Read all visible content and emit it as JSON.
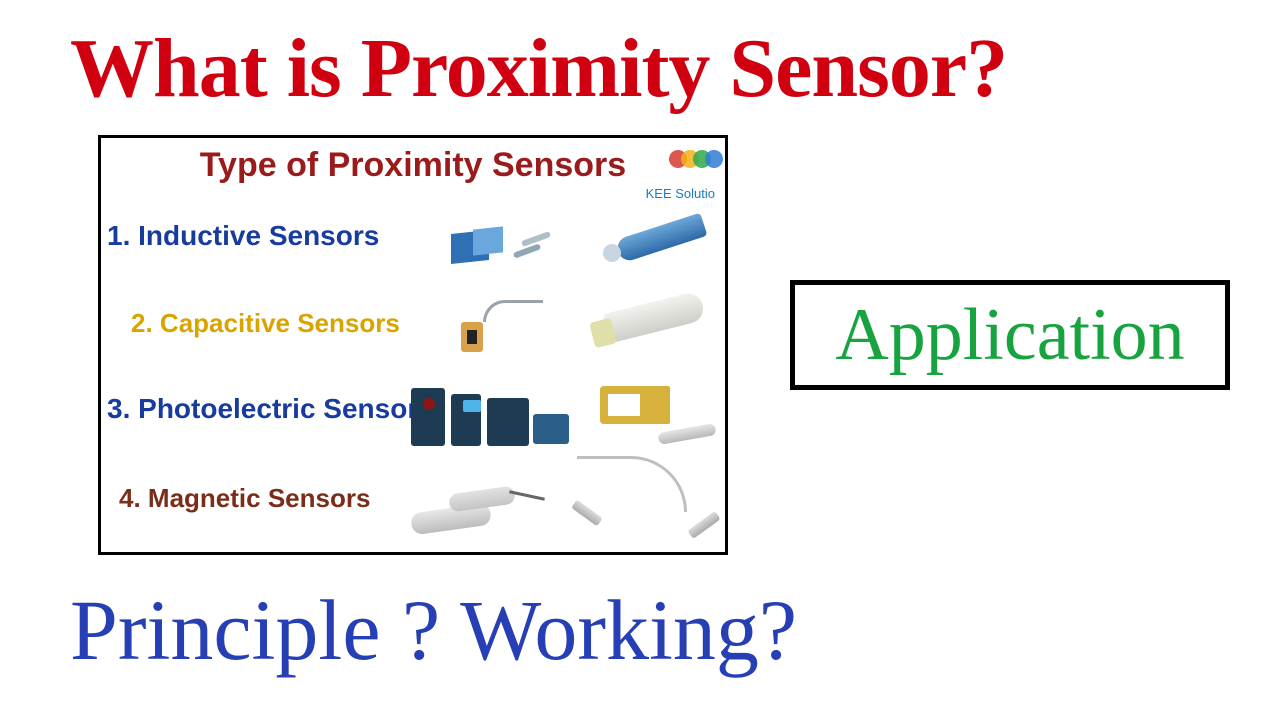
{
  "colors": {
    "title_red": "#d00010",
    "panel_title": "#9a1b1b",
    "item_blue": "#173b9e",
    "item_yellow": "#d9a400",
    "item_brown": "#7a2e1a",
    "application_green": "#17a33f",
    "bottom_blue": "#273fb5",
    "brand_blue": "#1280c4",
    "dot1": "#d63a2f",
    "dot2": "#f2b21a",
    "dot3": "#2fa84a",
    "dot4": "#2f7dd6"
  },
  "title": "What is Proximity Sensor?",
  "panel": {
    "title": "Type of Proximity Sensors",
    "items": [
      {
        "num": "1.",
        "label": "Inductive  Sensors"
      },
      {
        "num": "2.",
        "label": "Capacitive Sensors"
      },
      {
        "num": "3.",
        "label": "Photoelectric Sensor"
      },
      {
        "num": "4.",
        "label": "Magnetic Sensors"
      }
    ],
    "brand": "KEE Solutio"
  },
  "application": "Application",
  "bottom": "Principle ?   Working?"
}
